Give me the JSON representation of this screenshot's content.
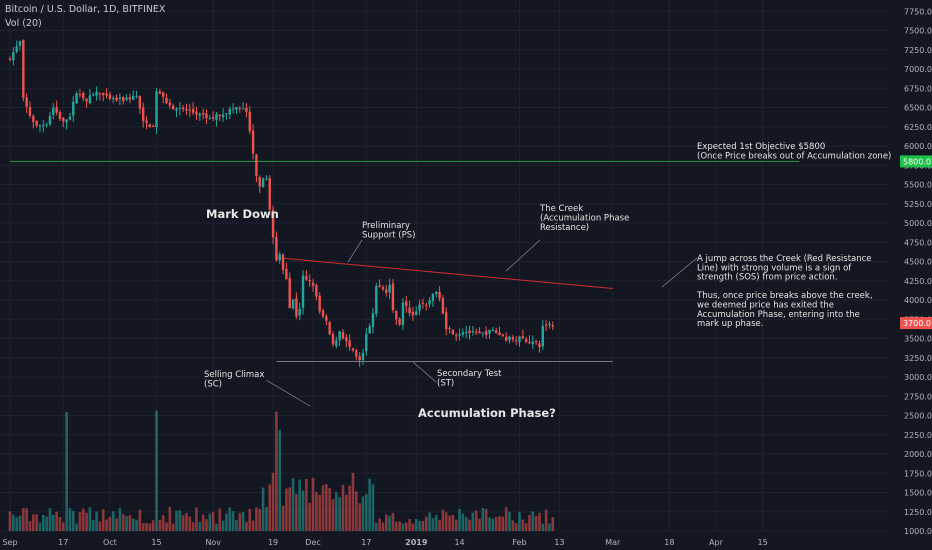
{
  "header": {
    "symbol_line": "Bitcoin / U.S. Dollar, 1D, BITFINEX",
    "volume_indicator": "Vol (20)"
  },
  "colors": {
    "background": "#131722",
    "grid": "#1e2230",
    "up": "#26a69a",
    "down": "#ef5350",
    "axis_text": "#b2b5be",
    "annotation_text": "#e6e6e6",
    "creek_line": "#d32f2f",
    "objective_line": "#2e9e3e",
    "support_line": "#9598a1",
    "objective_badge": "#1fc04a",
    "last_price_badge": "#ef5350"
  },
  "chart_data": {
    "type": "candlestick",
    "price_axis": {
      "ylim": [
        950,
        7850
      ],
      "ticks": [
        1000,
        1250,
        1500,
        1750,
        2000,
        2250,
        2500,
        2750,
        3000,
        3250,
        3500,
        3750,
        4000,
        4250,
        4500,
        4750,
        5000,
        5250,
        5500,
        5750,
        6000,
        6250,
        6500,
        6750,
        7000,
        7250,
        7500,
        7750
      ],
      "tick_labels": [
        "1000.0",
        "1250.0",
        "1500.0",
        "1750.0",
        "2000.0",
        "2250.0",
        "2500.0",
        "2750.0",
        "3000.0",
        "3250.0",
        "3500.0",
        "3750.0",
        "4000.0",
        "4250.0",
        "4500.0",
        "4750.0",
        "5000.0",
        "5250.0",
        "5500.0",
        "5750.0",
        "6000.0",
        "6250.0",
        "6500.0",
        "6750.0",
        "7000.0",
        "7250.0",
        "7500.0",
        "7750.0"
      ]
    },
    "time_axis": {
      "start": "2018-09-01",
      "end": "2019-04-26",
      "ticks": [
        {
          "date": "2018-09-01",
          "label": "Sep"
        },
        {
          "date": "2018-09-17",
          "label": "17"
        },
        {
          "date": "2018-10-01",
          "label": "Oct"
        },
        {
          "date": "2018-10-15",
          "label": "15"
        },
        {
          "date": "2018-11-01",
          "label": "Nov"
        },
        {
          "date": "2018-11-19",
          "label": "19"
        },
        {
          "date": "2018-12-01",
          "label": "Dec"
        },
        {
          "date": "2018-12-17",
          "label": "17"
        },
        {
          "date": "2019-01-01",
          "label": "2019",
          "bold": true
        },
        {
          "date": "2019-01-14",
          "label": "14"
        },
        {
          "date": "2019-02-01",
          "label": "Feb"
        },
        {
          "date": "2019-02-13",
          "label": "13"
        },
        {
          "date": "2019-03-01",
          "label": "Mar"
        },
        {
          "date": "2019-03-18",
          "label": "18"
        },
        {
          "date": "2019-04-01",
          "label": "Apr"
        },
        {
          "date": "2019-04-15",
          "label": "15"
        }
      ]
    },
    "closes": [
      {
        "date": "2018-09-01",
        "close": 7150
      },
      {
        "date": "2018-09-04",
        "close": 7350
      },
      {
        "date": "2018-09-05",
        "close": 6600
      },
      {
        "date": "2018-09-07",
        "close": 6400
      },
      {
        "date": "2018-09-09",
        "close": 6250
      },
      {
        "date": "2018-09-12",
        "close": 6300
      },
      {
        "date": "2018-09-14",
        "close": 6500
      },
      {
        "date": "2018-09-17",
        "close": 6300
      },
      {
        "date": "2018-09-19",
        "close": 6400
      },
      {
        "date": "2018-09-21",
        "close": 6700
      },
      {
        "date": "2018-09-24",
        "close": 6600
      },
      {
        "date": "2018-09-27",
        "close": 6700
      },
      {
        "date": "2018-10-01",
        "close": 6600
      },
      {
        "date": "2018-10-05",
        "close": 6600
      },
      {
        "date": "2018-10-09",
        "close": 6650
      },
      {
        "date": "2018-10-11",
        "close": 6300
      },
      {
        "date": "2018-10-14",
        "close": 6250
      },
      {
        "date": "2018-10-15",
        "close": 6700
      },
      {
        "date": "2018-10-20",
        "close": 6500
      },
      {
        "date": "2018-10-25",
        "close": 6450
      },
      {
        "date": "2018-10-31",
        "close": 6350
      },
      {
        "date": "2018-11-05",
        "close": 6450
      },
      {
        "date": "2018-11-08",
        "close": 6500
      },
      {
        "date": "2018-11-11",
        "close": 6450
      },
      {
        "date": "2018-11-14",
        "close": 5600
      },
      {
        "date": "2018-11-15",
        "close": 5500
      },
      {
        "date": "2018-11-17",
        "close": 5600
      },
      {
        "date": "2018-11-19",
        "close": 4800
      },
      {
        "date": "2018-11-20",
        "close": 4500
      },
      {
        "date": "2018-11-21",
        "close": 4600
      },
      {
        "date": "2018-11-22",
        "close": 4400
      },
      {
        "date": "2018-11-23",
        "close": 4300
      },
      {
        "date": "2018-11-24",
        "close": 3900
      },
      {
        "date": "2018-11-25",
        "close": 4000
      },
      {
        "date": "2018-11-26",
        "close": 3800
      },
      {
        "date": "2018-11-27",
        "close": 3900
      },
      {
        "date": "2018-11-28",
        "close": 4300
      },
      {
        "date": "2018-11-29",
        "close": 4250
      },
      {
        "date": "2018-12-01",
        "close": 4200
      },
      {
        "date": "2018-12-03",
        "close": 3850
      },
      {
        "date": "2018-12-05",
        "close": 3700
      },
      {
        "date": "2018-12-07",
        "close": 3400
      },
      {
        "date": "2018-12-09",
        "close": 3600
      },
      {
        "date": "2018-12-11",
        "close": 3450
      },
      {
        "date": "2018-12-14",
        "close": 3250
      },
      {
        "date": "2018-12-15",
        "close": 3200
      },
      {
        "date": "2018-12-16",
        "close": 3300
      },
      {
        "date": "2018-12-17",
        "close": 3550
      },
      {
        "date": "2018-12-18",
        "close": 3650
      },
      {
        "date": "2018-12-19",
        "close": 3800
      },
      {
        "date": "2018-12-20",
        "close": 4200
      },
      {
        "date": "2018-12-23",
        "close": 4100
      },
      {
        "date": "2018-12-24",
        "close": 4200
      },
      {
        "date": "2018-12-25",
        "close": 3850
      },
      {
        "date": "2018-12-27",
        "close": 3700
      },
      {
        "date": "2018-12-28",
        "close": 3950
      },
      {
        "date": "2018-12-31",
        "close": 3800
      },
      {
        "date": "2019-01-02",
        "close": 3950
      },
      {
        "date": "2019-01-04",
        "close": 3900
      },
      {
        "date": "2019-01-06",
        "close": 4100
      },
      {
        "date": "2019-01-08",
        "close": 4050
      },
      {
        "date": "2019-01-10",
        "close": 3650
      },
      {
        "date": "2019-01-13",
        "close": 3550
      },
      {
        "date": "2019-01-15",
        "close": 3600
      },
      {
        "date": "2019-01-20",
        "close": 3550
      },
      {
        "date": "2019-01-24",
        "close": 3600
      },
      {
        "date": "2019-01-28",
        "close": 3500
      },
      {
        "date": "2019-02-01",
        "close": 3500
      },
      {
        "date": "2019-02-05",
        "close": 3450
      },
      {
        "date": "2019-02-07",
        "close": 3400
      },
      {
        "date": "2019-02-08",
        "close": 3650
      },
      {
        "date": "2019-02-10",
        "close": 3700
      },
      {
        "date": "2019-02-11",
        "close": 3650
      }
    ],
    "volume": {
      "max_daily_value": 2700,
      "note_dates": [
        "2018-09-18",
        "2018-10-15",
        "2018-11-20",
        "2018-11-21"
      ]
    },
    "lines": [
      {
        "name": "creek",
        "from": {
          "date": "2018-11-20",
          "price": 4550
        },
        "to": {
          "date": "2019-03-01",
          "price": 4150
        }
      },
      {
        "name": "support",
        "from": {
          "date": "2018-11-20",
          "price": 3200
        },
        "to": {
          "date": "2019-03-01",
          "price": 3200
        }
      },
      {
        "name": "objective",
        "from": {
          "date": "2018-09-01",
          "price": 5800
        },
        "to": {
          "date": "2019-04-26",
          "price": 5800
        }
      }
    ],
    "price_badges": [
      {
        "price": 5800,
        "label": "5800.0",
        "kind": "objective"
      },
      {
        "price": 3700,
        "label": "3700.0",
        "kind": "last"
      }
    ]
  },
  "annotations": {
    "mark_down": "Mark Down",
    "accumulation_phase": "Accumulation Phase?",
    "preliminary_support": [
      "Preliminary",
      "Support (PS)"
    ],
    "the_creek": [
      "The Creek",
      "(Accumulation Phase",
      "Resistance)"
    ],
    "selling_climax": [
      "Selling Climax",
      "(SC)"
    ],
    "secondary_test": [
      "Secondary Test",
      "(ST)"
    ],
    "objective": [
      "Expected 1st Objective $5800",
      "(Once Price breaks out of Accumulation zone)"
    ],
    "jump_text": [
      "A jump across the Creek (Red Resistance",
      "Line) with strong volume is a sign of",
      "strength (SOS) from price action.",
      "",
      "Thus, once price breaks above the creek,",
      "we deemed price has exited the",
      "Accumulation Phase, entering into the",
      "mark up phase."
    ]
  }
}
